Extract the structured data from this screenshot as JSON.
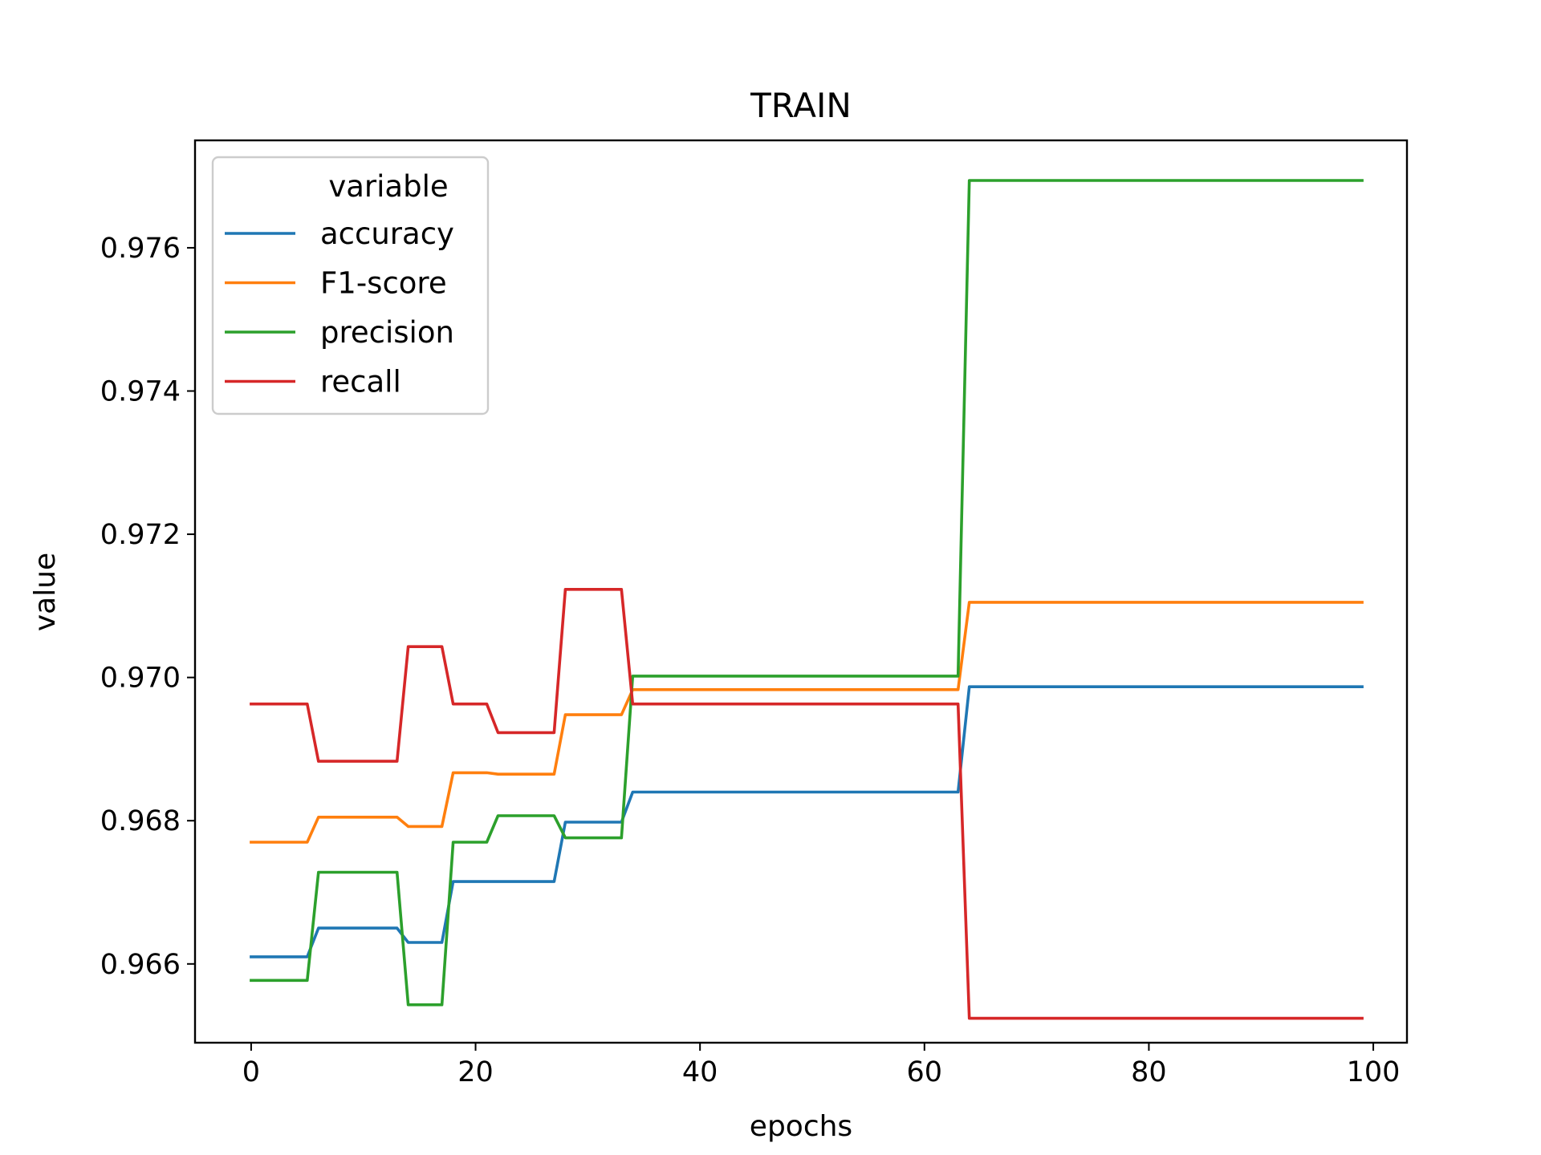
{
  "chart_data": {
    "type": "line",
    "title": "TRAIN",
    "xlabel": "epochs",
    "ylabel": "value",
    "xlim": [
      -5,
      103
    ],
    "ylim": [
      0.9649,
      0.9775
    ],
    "xticks": [
      0,
      20,
      40,
      60,
      80,
      100
    ],
    "xtick_labels": [
      "0",
      "20",
      "40",
      "60",
      "80",
      "100"
    ],
    "yticks": [
      0.966,
      0.968,
      0.97,
      0.972,
      0.974,
      0.976
    ],
    "ytick_labels": [
      "0.966",
      "0.968",
      "0.970",
      "0.972",
      "0.974",
      "0.976"
    ],
    "grid": false,
    "legend": {
      "title": "variable",
      "location": "upper-left"
    },
    "series": [
      {
        "name": "accuracy",
        "color": "#1f77b4",
        "points": [
          [
            0,
            0.9661
          ],
          [
            5,
            0.9661
          ],
          [
            6,
            0.9665
          ],
          [
            13,
            0.9665
          ],
          [
            14,
            0.9663
          ],
          [
            17,
            0.9663
          ],
          [
            18,
            0.96715
          ],
          [
            27,
            0.96715
          ],
          [
            28,
            0.96798
          ],
          [
            33,
            0.96798
          ],
          [
            34,
            0.9684
          ],
          [
            63,
            0.9684
          ],
          [
            64,
            0.96987
          ],
          [
            99,
            0.96987
          ]
        ]
      },
      {
        "name": "F1-score",
        "color": "#ff7f0e",
        "points": [
          [
            0,
            0.9677
          ],
          [
            5,
            0.9677
          ],
          [
            6,
            0.96805
          ],
          [
            13,
            0.96805
          ],
          [
            14,
            0.96792
          ],
          [
            17,
            0.96792
          ],
          [
            18,
            0.96867
          ],
          [
            21,
            0.96867
          ],
          [
            22,
            0.96865
          ],
          [
            27,
            0.96865
          ],
          [
            28,
            0.96948
          ],
          [
            33,
            0.96948
          ],
          [
            34,
            0.96983
          ],
          [
            63,
            0.96983
          ],
          [
            64,
            0.97105
          ],
          [
            99,
            0.97105
          ]
        ]
      },
      {
        "name": "precision",
        "color": "#2ca02c",
        "points": [
          [
            0,
            0.96577
          ],
          [
            5,
            0.96577
          ],
          [
            6,
            0.96728
          ],
          [
            13,
            0.96728
          ],
          [
            14,
            0.96543
          ],
          [
            17,
            0.96543
          ],
          [
            18,
            0.9677
          ],
          [
            21,
            0.9677
          ],
          [
            22,
            0.96807
          ],
          [
            27,
            0.96807
          ],
          [
            28,
            0.96776
          ],
          [
            33,
            0.96776
          ],
          [
            34,
            0.97002
          ],
          [
            63,
            0.97002
          ],
          [
            64,
            0.97694
          ],
          [
            99,
            0.97694
          ]
        ]
      },
      {
        "name": "recall",
        "color": "#d62728",
        "points": [
          [
            0,
            0.96963
          ],
          [
            5,
            0.96963
          ],
          [
            6,
            0.96883
          ],
          [
            13,
            0.96883
          ],
          [
            14,
            0.97043
          ],
          [
            17,
            0.97043
          ],
          [
            18,
            0.96963
          ],
          [
            21,
            0.96963
          ],
          [
            22,
            0.96923
          ],
          [
            27,
            0.96923
          ],
          [
            28,
            0.97123
          ],
          [
            33,
            0.97123
          ],
          [
            34,
            0.96963
          ],
          [
            63,
            0.96963
          ],
          [
            64,
            0.96524
          ],
          [
            99,
            0.96524
          ]
        ]
      }
    ]
  }
}
